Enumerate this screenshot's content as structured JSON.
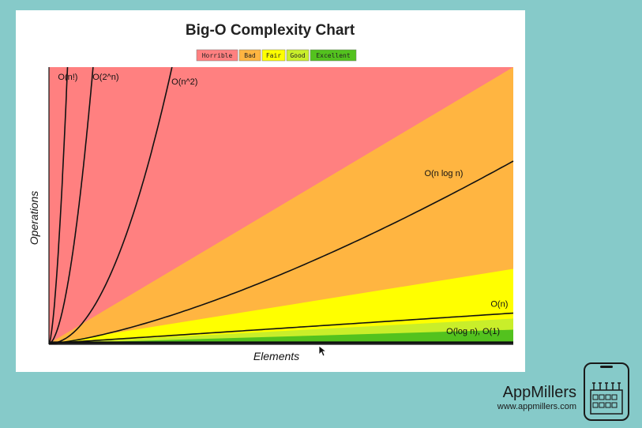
{
  "chart_data": {
    "type": "area",
    "title": "Big-O Complexity Chart",
    "xlabel": "Elements",
    "ylabel": "Operations",
    "xlim": [
      0,
      100
    ],
    "ylim": [
      0,
      100
    ],
    "legend_position": "top-center",
    "zones": [
      {
        "name": "Horrible",
        "color": "#ff8080",
        "upper_slope": null
      },
      {
        "name": "Bad",
        "color": "#ffb541",
        "upper_slope": 1.0
      },
      {
        "name": "Fair",
        "color": "#ffff00",
        "upper_slope": 0.27
      },
      {
        "name": "Good",
        "color": "#c9ee2a",
        "upper_slope": 0.09
      },
      {
        "name": "Excellent",
        "color": "#53c21e",
        "upper_slope": 0.05
      }
    ],
    "series": [
      {
        "name": "O(n!)",
        "type": "factorial"
      },
      {
        "name": "O(2^n)",
        "type": "exponential"
      },
      {
        "name": "O(n^2)",
        "type": "quadratic"
      },
      {
        "name": "O(n log n)",
        "type": "nlogn"
      },
      {
        "name": "O(n)",
        "type": "linear"
      },
      {
        "name": "O(log n), O(1)",
        "type": "constant"
      }
    ]
  },
  "brand": {
    "name": "AppMillers",
    "url": "www.appmillers.com"
  }
}
